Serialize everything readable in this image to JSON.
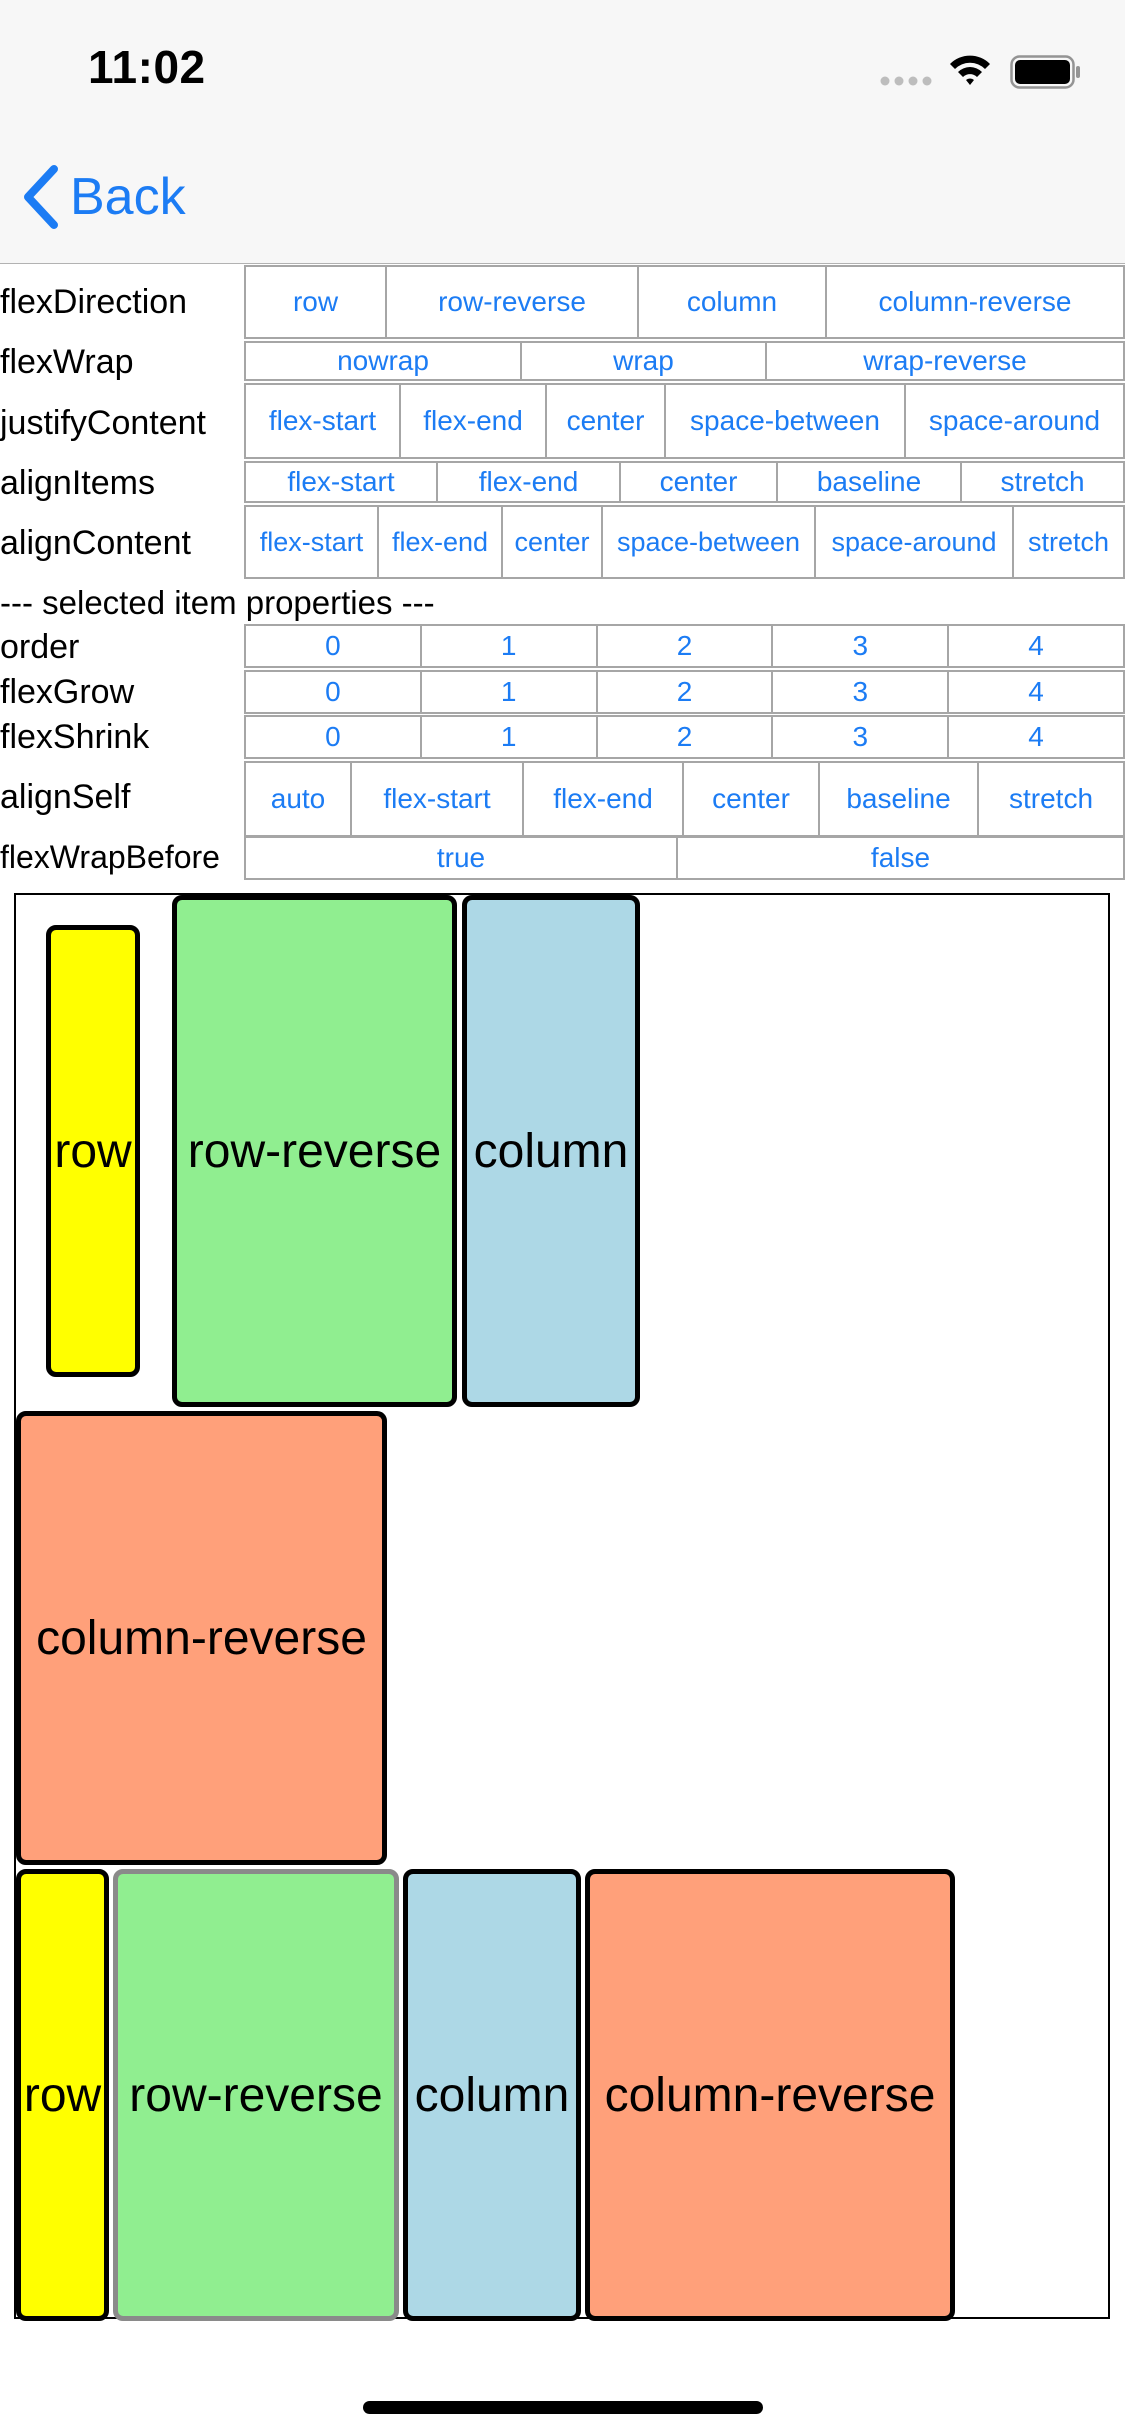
{
  "status_bar": {
    "time": "11:02"
  },
  "nav": {
    "back_label": "Back"
  },
  "controls": {
    "flexDirection": {
      "label": "flexDirection",
      "options": [
        "row",
        "row-reverse",
        "column",
        "column-reverse"
      ]
    },
    "flexWrap": {
      "label": "flexWrap",
      "options": [
        "nowrap",
        "wrap",
        "wrap-reverse"
      ]
    },
    "justifyContent": {
      "label": "justifyContent",
      "options": [
        "flex-start",
        "flex-end",
        "center",
        "space-between",
        "space-around"
      ]
    },
    "alignItems": {
      "label": "alignItems",
      "options": [
        "flex-start",
        "flex-end",
        "center",
        "baseline",
        "stretch"
      ]
    },
    "alignContent": {
      "label": "alignContent",
      "options": [
        "flex-start",
        "flex-end",
        "center",
        "space-between",
        "space-around",
        "stretch"
      ]
    }
  },
  "section_title": "--- selected item properties ---",
  "item_controls": {
    "order": {
      "label": "order",
      "options": [
        "0",
        "1",
        "2",
        "3",
        "4"
      ]
    },
    "flexGrow": {
      "label": "flexGrow",
      "options": [
        "0",
        "1",
        "2",
        "3",
        "4"
      ]
    },
    "flexShrink": {
      "label": "flexShrink",
      "options": [
        "0",
        "1",
        "2",
        "3",
        "4"
      ]
    },
    "alignSelf": {
      "label": "alignSelf",
      "options": [
        "auto",
        "flex-start",
        "flex-end",
        "center",
        "baseline",
        "stretch"
      ]
    },
    "flexWrapBefore": {
      "label": "flexWrapBefore",
      "options": [
        "true",
        "false"
      ]
    }
  },
  "demo_items": [
    {
      "label": "row",
      "color": "#ffff00"
    },
    {
      "label": "row-reverse",
      "color": "#90ee90"
    },
    {
      "label": "column",
      "color": "#add8e6"
    },
    {
      "label": "column-reverse",
      "color": "#ffa07a"
    },
    {
      "label": "row",
      "color": "#ffff00"
    },
    {
      "label": "row-reverse",
      "color": "#90ee90",
      "selected": true
    },
    {
      "label": "column",
      "color": "#add8e6"
    },
    {
      "label": "column-reverse",
      "color": "#ffa07a"
    }
  ],
  "colors": {
    "accent": "#1c7cf4",
    "segment_border": "#a6a6a6"
  }
}
